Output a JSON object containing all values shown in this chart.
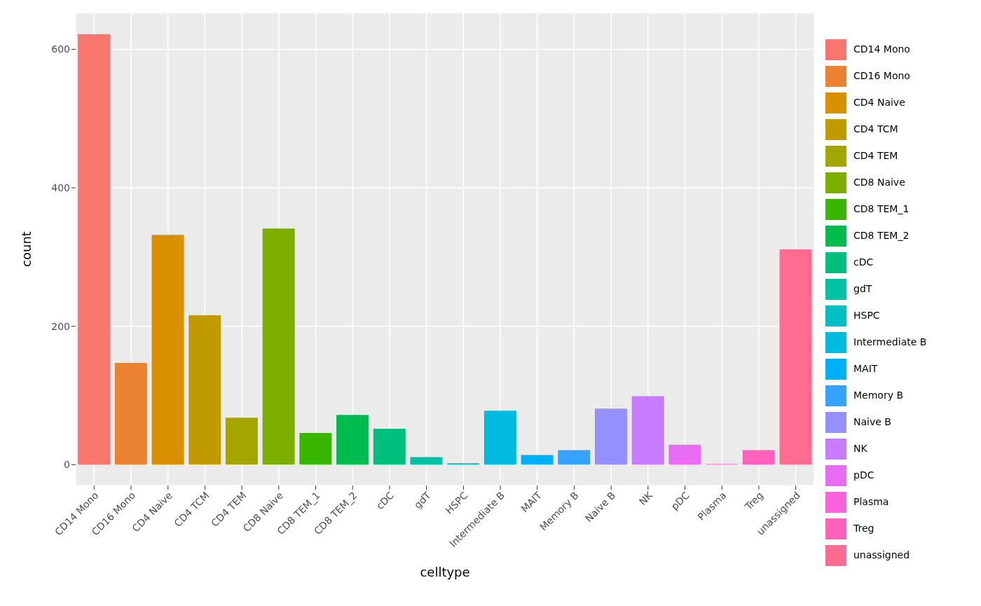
{
  "chart_data": {
    "type": "bar",
    "xlabel": "celltype",
    "ylabel": "count",
    "stacked": true,
    "categories": [
      "CD14 Mono",
      "CD16 Mono",
      "CD4 Naive",
      "CD4 TCM",
      "CD4 TEM",
      "CD8 Naive",
      "CD8 TEM_1",
      "CD8 TEM_2",
      "cDC",
      "gdT",
      "HSPC",
      "Intermediate B",
      "MAIT",
      "Memory B",
      "Naive B",
      "NK",
      "pDC",
      "Plasma",
      "Treg",
      "unassigned"
    ],
    "series": [
      {
        "name": "CD14 Mono",
        "color": "#f8766d",
        "values": [
          622,
          null,
          null,
          null,
          null,
          null,
          null,
          null,
          null,
          null,
          null,
          null,
          null,
          null,
          null,
          null,
          null,
          null,
          null,
          null
        ]
      },
      {
        "name": "CD16 Mono",
        "color": "#ea8331",
        "values": [
          null,
          147,
          null,
          null,
          null,
          null,
          null,
          null,
          null,
          null,
          null,
          null,
          null,
          null,
          null,
          null,
          null,
          null,
          null,
          null
        ]
      },
      {
        "name": "CD4 Naive",
        "color": "#d89000",
        "values": [
          null,
          null,
          332,
          null,
          null,
          null,
          null,
          null,
          null,
          null,
          null,
          null,
          null,
          null,
          null,
          null,
          null,
          null,
          null,
          null
        ]
      },
      {
        "name": "CD4 TCM",
        "color": "#c09b00",
        "values": [
          null,
          null,
          null,
          216,
          null,
          null,
          null,
          null,
          null,
          null,
          null,
          null,
          null,
          null,
          null,
          null,
          null,
          null,
          null,
          null
        ]
      },
      {
        "name": "CD4 TEM",
        "color": "#a3a500",
        "values": [
          null,
          null,
          null,
          null,
          68,
          null,
          null,
          null,
          null,
          null,
          null,
          null,
          null,
          null,
          null,
          null,
          null,
          null,
          null,
          null
        ]
      },
      {
        "name": "CD8 Naive",
        "color": "#7cae00",
        "values": [
          null,
          null,
          null,
          null,
          null,
          341,
          null,
          null,
          null,
          null,
          null,
          null,
          null,
          null,
          null,
          null,
          null,
          null,
          null,
          null
        ]
      },
      {
        "name": "CD8 TEM_1",
        "color": "#39b600",
        "values": [
          null,
          null,
          null,
          null,
          null,
          null,
          46,
          null,
          null,
          null,
          null,
          null,
          null,
          null,
          null,
          null,
          null,
          null,
          null,
          null
        ]
      },
      {
        "name": "CD8 TEM_2",
        "color": "#00bb4e",
        "values": [
          null,
          null,
          null,
          null,
          null,
          null,
          null,
          72,
          null,
          null,
          null,
          null,
          null,
          null,
          null,
          null,
          null,
          null,
          null,
          null
        ]
      },
      {
        "name": "cDC",
        "color": "#00bf7d",
        "values": [
          null,
          null,
          null,
          null,
          null,
          null,
          null,
          null,
          52,
          null,
          null,
          null,
          null,
          null,
          null,
          null,
          null,
          null,
          null,
          null
        ]
      },
      {
        "name": "gdT",
        "color": "#00c1a3",
        "values": [
          null,
          null,
          null,
          null,
          null,
          null,
          null,
          null,
          null,
          11,
          null,
          null,
          null,
          null,
          null,
          null,
          null,
          null,
          null,
          null
        ]
      },
      {
        "name": "HSPC",
        "color": "#00bfc4",
        "values": [
          null,
          null,
          null,
          null,
          null,
          null,
          null,
          null,
          null,
          null,
          2,
          null,
          null,
          null,
          null,
          null,
          null,
          null,
          null,
          null
        ]
      },
      {
        "name": "Intermediate B",
        "color": "#00bae0",
        "values": [
          null,
          null,
          null,
          null,
          null,
          null,
          null,
          null,
          null,
          null,
          null,
          78,
          null,
          null,
          null,
          null,
          null,
          null,
          null,
          null
        ]
      },
      {
        "name": "MAIT",
        "color": "#00b0f6",
        "values": [
          null,
          null,
          null,
          null,
          null,
          null,
          null,
          null,
          null,
          null,
          null,
          null,
          14,
          null,
          null,
          null,
          null,
          null,
          null,
          null
        ]
      },
      {
        "name": "Memory B",
        "color": "#35a2ff",
        "values": [
          null,
          null,
          null,
          null,
          null,
          null,
          null,
          null,
          null,
          null,
          null,
          null,
          null,
          21,
          null,
          null,
          null,
          null,
          null,
          null
        ]
      },
      {
        "name": "Naive B",
        "color": "#9590ff",
        "values": [
          null,
          null,
          null,
          null,
          null,
          null,
          null,
          null,
          null,
          null,
          null,
          null,
          null,
          null,
          81,
          null,
          null,
          null,
          null,
          null
        ]
      },
      {
        "name": "NK",
        "color": "#c77cff",
        "values": [
          null,
          null,
          null,
          null,
          null,
          null,
          null,
          null,
          null,
          null,
          null,
          null,
          null,
          null,
          null,
          99,
          null,
          null,
          null,
          null
        ]
      },
      {
        "name": "pDC",
        "color": "#e76bf3",
        "values": [
          null,
          null,
          null,
          null,
          null,
          null,
          null,
          null,
          null,
          null,
          null,
          null,
          null,
          null,
          null,
          null,
          29,
          null,
          null,
          null
        ]
      },
      {
        "name": "Plasma",
        "color": "#fa62db",
        "values": [
          null,
          null,
          null,
          null,
          null,
          null,
          null,
          null,
          null,
          null,
          null,
          null,
          null,
          null,
          null,
          null,
          null,
          1,
          null,
          null
        ]
      },
      {
        "name": "Treg",
        "color": "#ff62bc",
        "values": [
          null,
          null,
          null,
          null,
          null,
          null,
          null,
          null,
          null,
          null,
          null,
          null,
          null,
          null,
          null,
          null,
          null,
          null,
          21,
          null
        ]
      },
      {
        "name": "unassigned",
        "color": "#ff6c91",
        "values": [
          null,
          null,
          null,
          null,
          null,
          null,
          null,
          null,
          null,
          null,
          null,
          null,
          null,
          null,
          null,
          null,
          null,
          null,
          null,
          311
        ]
      }
    ],
    "ylim": [
      -30,
      653
    ],
    "yticks": [
      0,
      200,
      400,
      600
    ],
    "grid": true,
    "legend": "right"
  }
}
